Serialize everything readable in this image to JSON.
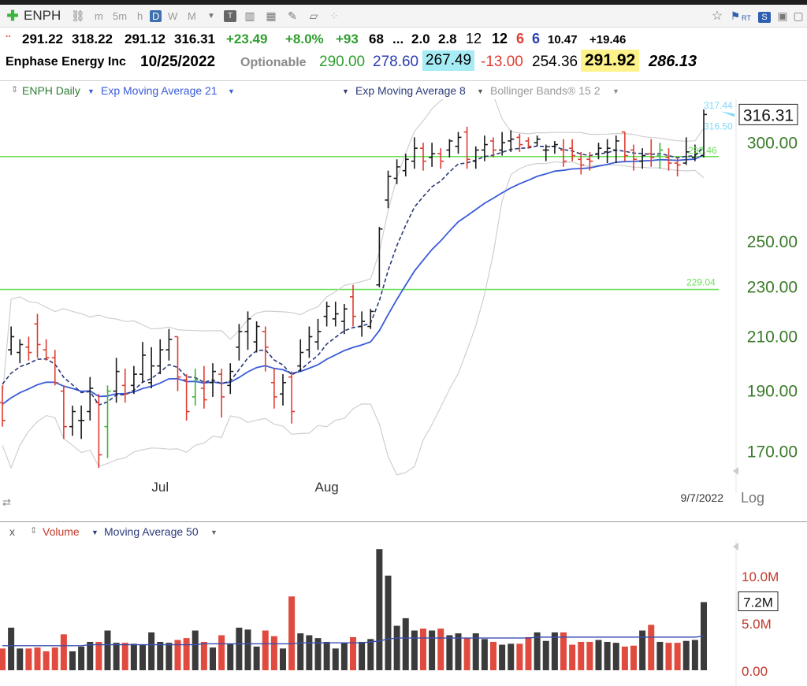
{
  "toolbar": {
    "symbol": "ENPH",
    "timeframes": [
      "m",
      "5m",
      "h",
      "D",
      "W",
      "M"
    ],
    "active_timeframe": "D",
    "icons": [
      "add-symbol-icon",
      "link-icon",
      "chart-type-icon",
      "bar-style-icon",
      "calculator-icon",
      "draw-icon",
      "note-icon",
      "favorite-star-icon",
      "alert-flag-icon",
      "rt-icon",
      "s-icon",
      "save-icon",
      "window-icon"
    ],
    "rt_label": "RT",
    "s_label": "S"
  },
  "quote": {
    "open": "291.22",
    "high": "318.22",
    "low": "291.12",
    "close": "316.31",
    "change": "+23.49",
    "change_pct": "+8.0%",
    "ad": "+93",
    "rs": "68",
    "ellipsis": "...",
    "v1": "2.0",
    "v2": "2.8",
    "v3": "12",
    "v4": "12",
    "v5": "6",
    "v6": "6",
    "v7": "10.47",
    "v8": "+19.46",
    "company": "Enphase Energy Inc",
    "date": "10/25/2022",
    "optionable": "Optionable",
    "p1": "290.00",
    "p2": "278.60",
    "p3": "267.49",
    "p4": "-13.00",
    "p5": "254.36",
    "p6": "291.92",
    "p7": "286.13",
    "dots": ".."
  },
  "indicators": {
    "series": "ENPH Daily",
    "ema21": "Exp Moving Average 21",
    "ema8": "Exp Moving Average 8",
    "bb": "Bollinger Bands® 15 2"
  },
  "volume_header": {
    "close": "x",
    "volume": "Volume",
    "ma": "Moving Average 50"
  },
  "colors": {
    "up": "#1a1a1a",
    "down": "#e03c31",
    "up_green": "#3bb43b",
    "ema21": "#3a5bd9",
    "ema8": "#2b3a7a",
    "bb": "#cfcfcf",
    "hline": "#6ee05b",
    "axis_text": "#3a7a2a"
  },
  "chart_data": {
    "type": "ohlc",
    "price_scale": "log",
    "ylim": [
      165,
      325
    ],
    "yticks": [
      170,
      190,
      210,
      230,
      250,
      300
    ],
    "ytick_labels": [
      "170.00",
      "190.00",
      "210.00",
      "230.00",
      "250.00",
      "300.00"
    ],
    "x_labels": [
      "Jul",
      "Aug"
    ],
    "x_label_index": [
      18,
      37
    ],
    "date_label": "9/7/2022",
    "log_label": "Log",
    "last_price_label": "316.31",
    "annotations": [
      "317.44",
      "316.50",
      "292.46",
      "229.04"
    ],
    "horizontal_lines": [
      292.46,
      229.04
    ],
    "bars": [
      {
        "o": 186,
        "h": 192,
        "l": 178,
        "c": 180,
        "v": 2.3
      },
      {
        "o": 205,
        "h": 214,
        "l": 203,
        "c": 210,
        "v": 4.5
      },
      {
        "o": 204,
        "h": 209,
        "l": 200,
        "c": 207,
        "v": 2.3
      },
      {
        "o": 206,
        "h": 210,
        "l": 201,
        "c": 204,
        "v": 2.3
      },
      {
        "o": 215,
        "h": 219,
        "l": 202,
        "c": 207,
        "v": 2.4
      },
      {
        "o": 205,
        "h": 209,
        "l": 201,
        "c": 202,
        "v": 2.0
      },
      {
        "o": 202,
        "h": 205,
        "l": 192,
        "c": 193,
        "v": 2.4
      },
      {
        "o": 190,
        "h": 192,
        "l": 174,
        "c": 178,
        "v": 3.8
      },
      {
        "o": 178,
        "h": 185,
        "l": 175,
        "c": 183,
        "v": 2.0
      },
      {
        "o": 180,
        "h": 185,
        "l": 174,
        "c": 180,
        "v": 2.5
      },
      {
        "o": 183,
        "h": 195,
        "l": 180,
        "c": 191,
        "v": 3.0
      },
      {
        "o": 186,
        "h": 189,
        "l": 165,
        "c": 169,
        "v": 3.0
      },
      {
        "o": 178,
        "h": 192,
        "l": 168,
        "c": 190,
        "v": 4.2
      },
      {
        "o": 190,
        "h": 202,
        "l": 186,
        "c": 197,
        "v": 2.9
      },
      {
        "o": 192,
        "h": 198,
        "l": 186,
        "c": 189,
        "v": 2.9
      },
      {
        "o": 192,
        "h": 199,
        "l": 189,
        "c": 196,
        "v": 2.8
      },
      {
        "o": 196,
        "h": 208,
        "l": 193,
        "c": 203,
        "v": 2.7
      },
      {
        "o": 193,
        "h": 206,
        "l": 191,
        "c": 199,
        "v": 4.0
      },
      {
        "o": 199,
        "h": 209,
        "l": 196,
        "c": 205,
        "v": 3.0
      },
      {
        "o": 205,
        "h": 213,
        "l": 201,
        "c": 209,
        "v": 2.9
      },
      {
        "o": 210,
        "h": 210,
        "l": 190,
        "c": 195,
        "v": 3.2
      },
      {
        "o": 194,
        "h": 196,
        "l": 180,
        "c": 183,
        "v": 3.4
      },
      {
        "o": 188,
        "h": 198,
        "l": 185,
        "c": 194,
        "v": 4.2
      },
      {
        "o": 191,
        "h": 199,
        "l": 184,
        "c": 187,
        "v": 3.0
      },
      {
        "o": 193,
        "h": 200,
        "l": 188,
        "c": 197,
        "v": 2.4
      },
      {
        "o": 196,
        "h": 198,
        "l": 181,
        "c": 188,
        "v": 3.7
      },
      {
        "o": 192,
        "h": 200,
        "l": 189,
        "c": 197,
        "v": 2.8
      },
      {
        "o": 206,
        "h": 215,
        "l": 201,
        "c": 212,
        "v": 4.5
      },
      {
        "o": 212,
        "h": 220,
        "l": 205,
        "c": 217,
        "v": 4.3
      },
      {
        "o": 208,
        "h": 216,
        "l": 204,
        "c": 214,
        "v": 2.5
      },
      {
        "o": 212,
        "h": 214,
        "l": 197,
        "c": 206,
        "v": 4.2
      },
      {
        "o": 193,
        "h": 198,
        "l": 184,
        "c": 188,
        "v": 3.6
      },
      {
        "o": 189,
        "h": 196,
        "l": 185,
        "c": 193,
        "v": 2.3
      },
      {
        "o": 195,
        "h": 197,
        "l": 179,
        "c": 183,
        "v": 7.8
      },
      {
        "o": 199,
        "h": 209,
        "l": 197,
        "c": 204,
        "v": 3.9
      },
      {
        "o": 205,
        "h": 214,
        "l": 202,
        "c": 210,
        "v": 3.7
      },
      {
        "o": 208,
        "h": 217,
        "l": 205,
        "c": 212,
        "v": 3.4
      },
      {
        "o": 218,
        "h": 224,
        "l": 214,
        "c": 222,
        "v": 3.0
      },
      {
        "o": 217,
        "h": 224,
        "l": 214,
        "c": 219,
        "v": 2.3
      },
      {
        "o": 216,
        "h": 223,
        "l": 211,
        "c": 221,
        "v": 2.9
      },
      {
        "o": 226,
        "h": 231,
        "l": 214,
        "c": 218,
        "v": 3.5
      },
      {
        "o": 214,
        "h": 220,
        "l": 210,
        "c": 216,
        "v": 3.0
      },
      {
        "o": 214,
        "h": 221,
        "l": 213,
        "c": 220,
        "v": 3.3
      },
      {
        "o": 231,
        "h": 257,
        "l": 230,
        "c": 256,
        "v": 12.8
      },
      {
        "o": 270,
        "h": 285,
        "l": 266,
        "c": 282,
        "v": 10.0
      },
      {
        "o": 281,
        "h": 291,
        "l": 278,
        "c": 287,
        "v": 4.7
      },
      {
        "o": 285,
        "h": 294,
        "l": 282,
        "c": 291,
        "v": 5.5
      },
      {
        "o": 290,
        "h": 303,
        "l": 286,
        "c": 297,
        "v": 4.2
      },
      {
        "o": 297,
        "h": 300,
        "l": 285,
        "c": 290,
        "v": 4.4
      },
      {
        "o": 292,
        "h": 300,
        "l": 287,
        "c": 294,
        "v": 4.2
      },
      {
        "o": 294,
        "h": 297,
        "l": 286,
        "c": 290,
        "v": 4.4
      },
      {
        "o": 296,
        "h": 302,
        "l": 292,
        "c": 301,
        "v": 3.7
      },
      {
        "o": 298,
        "h": 306,
        "l": 294,
        "c": 303,
        "v": 3.9
      },
      {
        "o": 306,
        "h": 309,
        "l": 286,
        "c": 291,
        "v": 3.4
      },
      {
        "o": 290,
        "h": 298,
        "l": 286,
        "c": 296,
        "v": 3.9
      },
      {
        "o": 296,
        "h": 304,
        "l": 290,
        "c": 299,
        "v": 3.3
      },
      {
        "o": 301,
        "h": 303,
        "l": 292,
        "c": 296,
        "v": 3.0
      },
      {
        "o": 296,
        "h": 306,
        "l": 293,
        "c": 300,
        "v": 2.7
      },
      {
        "o": 301,
        "h": 307,
        "l": 295,
        "c": 302,
        "v": 2.8
      },
      {
        "o": 303,
        "h": 305,
        "l": 295,
        "c": 299,
        "v": 2.8
      },
      {
        "o": 301,
        "h": 303,
        "l": 297,
        "c": 298,
        "v": 3.5
      },
      {
        "o": 300,
        "h": 304,
        "l": 298,
        "c": 302,
        "v": 4.0
      },
      {
        "o": 296,
        "h": 299,
        "l": 290,
        "c": 296,
        "v": 3.1
      },
      {
        "o": 298,
        "h": 301,
        "l": 294,
        "c": 299,
        "v": 4.0
      },
      {
        "o": 296,
        "h": 302,
        "l": 287,
        "c": 290,
        "v": 4.0
      },
      {
        "o": 297,
        "h": 302,
        "l": 290,
        "c": 293,
        "v": 2.7
      },
      {
        "o": 291,
        "h": 295,
        "l": 283,
        "c": 288,
        "v": 3.0
      },
      {
        "o": 291,
        "h": 295,
        "l": 285,
        "c": 290,
        "v": 3.0
      },
      {
        "o": 294,
        "h": 300,
        "l": 291,
        "c": 297,
        "v": 3.2
      },
      {
        "o": 295,
        "h": 302,
        "l": 289,
        "c": 297,
        "v": 3.0
      },
      {
        "o": 296,
        "h": 304,
        "l": 289,
        "c": 301,
        "v": 2.9
      },
      {
        "o": 306,
        "h": 306,
        "l": 290,
        "c": 293,
        "v": 2.5
      },
      {
        "o": 296,
        "h": 299,
        "l": 285,
        "c": 291,
        "v": 2.6
      },
      {
        "o": 290,
        "h": 297,
        "l": 286,
        "c": 293,
        "v": 4.2
      },
      {
        "o": 294,
        "h": 302,
        "l": 287,
        "c": 292,
        "v": 4.8
      },
      {
        "o": 293,
        "h": 300,
        "l": 286,
        "c": 296,
        "v": 3.0
      },
      {
        "o": 292,
        "h": 297,
        "l": 285,
        "c": 289,
        "v": 2.9
      },
      {
        "o": 289,
        "h": 292,
        "l": 282,
        "c": 288,
        "v": 2.9
      },
      {
        "o": 289,
        "h": 303,
        "l": 288,
        "c": 295,
        "v": 3.1
      },
      {
        "o": 292,
        "h": 299,
        "l": 290,
        "c": 294,
        "v": 3.2
      },
      {
        "o": 293,
        "h": 319,
        "l": 292,
        "c": 316,
        "v": 7.2
      }
    ],
    "volume_axis": {
      "ylim": [
        0,
        12.9
      ],
      "yticks": [
        0,
        5,
        10
      ],
      "ytick_labels": [
        "0.00",
        "5.0M",
        "10.0M"
      ],
      "last_label": "7.2M"
    },
    "volume_ma50": [
      2.6,
      2.6,
      2.6,
      2.6,
      2.6,
      2.6,
      2.6,
      2.6,
      2.6,
      2.6,
      2.7,
      2.7,
      2.7,
      2.7,
      2.7,
      2.7,
      2.7,
      2.7,
      2.7,
      2.7,
      2.7,
      2.7,
      2.7,
      2.8,
      2.8,
      2.8,
      2.8,
      2.8,
      2.8,
      2.8,
      2.8,
      2.8,
      2.8,
      2.8,
      2.9,
      2.9,
      2.9,
      2.9,
      2.9,
      2.9,
      2.9,
      2.9,
      3.0,
      3.1,
      3.3,
      3.4,
      3.4,
      3.4,
      3.4,
      3.4,
      3.4,
      3.4,
      3.4,
      3.4,
      3.4,
      3.4,
      3.4,
      3.4,
      3.4,
      3.4,
      3.4,
      3.5,
      3.5,
      3.5,
      3.5,
      3.5,
      3.5,
      3.5,
      3.5,
      3.5,
      3.5,
      3.5,
      3.5,
      3.5,
      3.5,
      3.5,
      3.5,
      3.5,
      3.5,
      3.5,
      3.6
    ]
  }
}
